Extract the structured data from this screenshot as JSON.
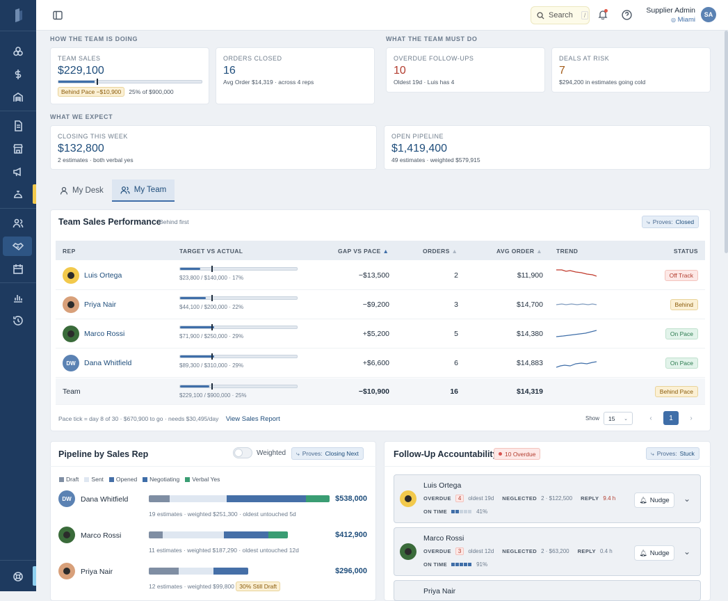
{
  "topbar": {
    "search_label": "Search",
    "search_shortcut": "/",
    "user_name": "Supplier Admin",
    "user_location": "Miami",
    "user_initials": "SA"
  },
  "sections": {
    "doing": "HOW THE TEAM IS DOING",
    "must_do": "WHAT THE TEAM MUST DO",
    "expect": "WHAT WE EXPECT"
  },
  "kpis": {
    "team_sales": {
      "label": "TEAM SALES",
      "value": "$229,100",
      "progress": 0.25,
      "pace_badge": "Behind Pace −$10,900",
      "pace_text": "25% of $900,000"
    },
    "orders_closed": {
      "label": "ORDERS CLOSED",
      "value": "16",
      "sub": "Avg Order  $14,319  · across  4  reps"
    },
    "overdue": {
      "label": "OVERDUE FOLLOW-UPS",
      "value": "10",
      "sub": "Oldest  19d  · Luis has  4"
    },
    "deals_risk": {
      "label": "DEALS AT RISK",
      "value": "7",
      "sub": "$294,200  in estimates going cold"
    },
    "closing": {
      "label": "CLOSING THIS WEEK",
      "value": "$132,800",
      "sub": "2  estimates · both verbal yes"
    },
    "pipeline": {
      "label": "OPEN PIPELINE",
      "value": "$1,419,400",
      "sub": "49  estimates · weighted  $579,915"
    }
  },
  "tabs": [
    {
      "label": "My Desk"
    },
    {
      "label": "My Team"
    }
  ],
  "performance": {
    "title": "Team Sales Performance",
    "subtitle": "Behind first",
    "proves_prefix": "Proves:",
    "proves_value": "Closed",
    "headers": {
      "rep": "REP",
      "target": "TARGET VS ACTUAL",
      "gap": "GAP VS PACE",
      "orders": "ORDERS",
      "avg": "AVG ORDER",
      "trend": "TREND",
      "status": "STATUS"
    },
    "rows": [
      {
        "name": "Luis Ortega",
        "progress": 0.17,
        "sub": "$23,800 / $140,000 · 17%",
        "gap": "−$13,500",
        "orders": "2",
        "avg": "$11,900",
        "status": "Off Track"
      },
      {
        "name": "Priya Nair",
        "progress": 0.22,
        "sub": "$44,100 / $200,000 · 22%",
        "gap": "−$9,200",
        "orders": "3",
        "avg": "$14,700",
        "status": "Behind"
      },
      {
        "name": "Marco Rossi",
        "progress": 0.29,
        "sub": "$71,900 / $250,000 · 29%",
        "gap": "+$5,200",
        "orders": "5",
        "avg": "$14,380",
        "status": "On Pace"
      },
      {
        "name": "Dana Whitfield",
        "initials": "DW",
        "progress": 0.29,
        "sub": "$89,300 / $310,000 · 29%",
        "gap": "+$6,600",
        "orders": "6",
        "avg": "$14,883",
        "status": "On Pace"
      }
    ],
    "team_row": {
      "name": "Team",
      "progress": 0.25,
      "sub": "$229,100 / $900,000 · 25%",
      "gap": "−$10,900",
      "orders": "16",
      "avg": "$14,319",
      "status": "Behind Pace"
    },
    "pace_tick": 0.267,
    "footnote": "Pace tick = day 8 of 30 · $670,900 to go · needs $30,495/day",
    "report_link": "View Sales Report",
    "show_label": "Show",
    "page_size": "15",
    "current_page": "1"
  },
  "pipeline": {
    "title": "Pipeline by Sales Rep",
    "weighted_label": "Weighted",
    "proves_prefix": "Proves:",
    "proves_value": "Closing Next",
    "legend": [
      "Draft",
      "Sent",
      "Opened",
      "Negotiating",
      "Verbal Yes"
    ],
    "colors": {
      "draft": "#7f8ea3",
      "sent": "#dfe7f1",
      "opened": "#456fa7",
      "negotiating": "#3e6da8",
      "verbal": "#3a9d73"
    },
    "reps": [
      {
        "name": "Dana Whitfield",
        "initials": "DW",
        "total": "$538,000",
        "estimates": "19",
        "weighted": "$251,300",
        "untouched": "5d",
        "segments": [
          30,
          82,
          114,
          0,
          34
        ]
      },
      {
        "name": "Marco Rossi",
        "total": "$412,900",
        "estimates": "11",
        "weighted": "$187,290",
        "untouched": "12d",
        "segments": [
          20,
          88,
          64,
          0,
          28
        ]
      },
      {
        "name": "Priya Nair",
        "total": "$296,000",
        "estimates": "12",
        "weighted": "$99,800",
        "badge": "30% Still Draft",
        "segments": [
          43,
          50,
          50,
          0,
          0
        ]
      }
    ],
    "sub_estimates": "estimates · weighted",
    "sub_untouched": "· oldest untouched"
  },
  "followup": {
    "title": "Follow-Up Accountability",
    "overdue_badge": "10  Overdue",
    "proves_prefix": "Proves:",
    "proves_value": "Stuck",
    "nudge_label": "Nudge",
    "cards": [
      {
        "name": "Luis Ortega",
        "overdue_label": "OVERDUE",
        "overdue": "4",
        "oldest": "oldest 19d",
        "neglected_label": "NEGLECTED",
        "neglected": "2 · $122,500",
        "reply_label": "REPLY",
        "reply": "9.4 h",
        "ontime_label": "ON TIME",
        "ontime": "41%"
      },
      {
        "name": "Marco Rossi",
        "overdue_label": "OVERDUE",
        "overdue": "3",
        "oldest": "oldest 12d",
        "neglected_label": "NEGLECTED",
        "neglected": "2 · $63,200",
        "reply_label": "REPLY",
        "reply": "0.4 h",
        "ontime_label": "ON TIME",
        "ontime": "91%"
      },
      {
        "name": "Priya Nair"
      }
    ]
  }
}
